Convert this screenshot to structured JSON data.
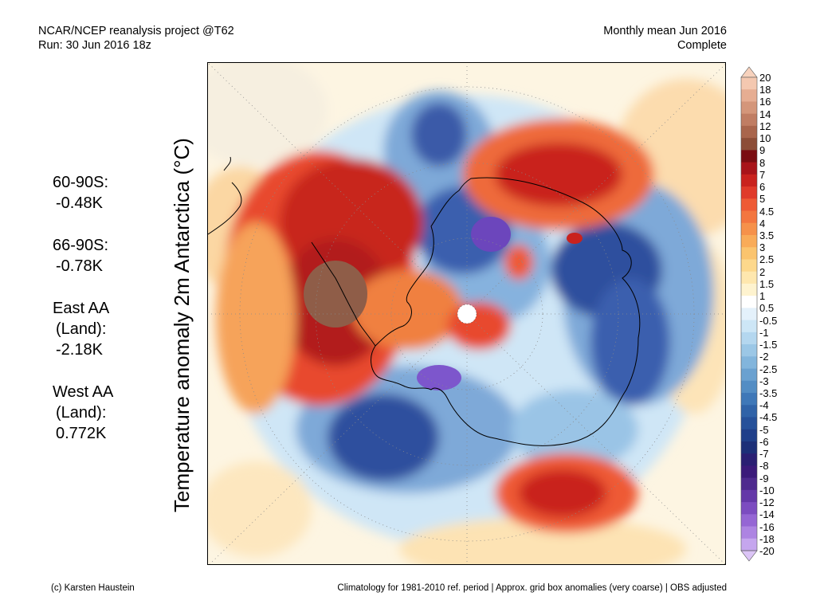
{
  "header": {
    "title_line1": "NCAR/NCEP reanalysis project @T62",
    "title_line2": "Run: 30 Jun 2016 18z",
    "right_line1": "Monthly mean Jun 2016",
    "right_line2": "Complete"
  },
  "y_axis_label": "Temperature anomaly 2m Antarctica (°C)",
  "stats": [
    {
      "name": "60-90S:",
      "value": "-0.48K"
    },
    {
      "name": "66-90S:",
      "value": "-0.78K"
    },
    {
      "name": "East AA",
      "sub": "(Land):",
      "value": "-2.18K"
    },
    {
      "name": "West AA",
      "sub": "(Land):",
      "value": "0.772K"
    }
  ],
  "colorbar": {
    "ticks": [
      "20",
      "18",
      "16",
      "14",
      "12",
      "10",
      "9",
      "8",
      "7",
      "6",
      "5",
      "4.5",
      "4",
      "3.5",
      "3",
      "2.5",
      "2",
      "1.5",
      "1",
      "0.5",
      "-0.5",
      "-1",
      "-1.5",
      "-2",
      "-2.5",
      "-3",
      "-3.5",
      "-4",
      "-4.5",
      "-5",
      "-6",
      "-7",
      "-8",
      "-9",
      "-10",
      "-12",
      "-14",
      "-16",
      "-18",
      "-20"
    ],
    "colors": [
      "#f4c8b0",
      "#e6ad92",
      "#d4967a",
      "#c07d63",
      "#a9654c",
      "#8c4d37",
      "#7a0d12",
      "#a8141a",
      "#c9221e",
      "#e03a2a",
      "#ee5a35",
      "#f3763f",
      "#f6914a",
      "#f9ab58",
      "#fbc46e",
      "#fdd88c",
      "#fee7ae",
      "#fef3cf",
      "#ffffff",
      "#e4f1fb",
      "#cde6f6",
      "#b4d7ef",
      "#9bc7e6",
      "#82b5dc",
      "#6aa1d0",
      "#538dc4",
      "#3f78b8",
      "#3063a8",
      "#26519a",
      "#1f3f8a",
      "#1c2f78",
      "#2a1f73",
      "#3b1a7a",
      "#4e2a8e",
      "#6438a8",
      "#7c4cc0",
      "#9566d4",
      "#ad84e2",
      "#c5a6ee"
    ],
    "top_cap": "#f7d2bd",
    "bottom_cap": "#dbc4f6"
  },
  "footer": {
    "left": "(c) Karsten Haustein",
    "right": "Climatology for 1981-2010 ref. period | Approx. grid box anomalies (very coarse) | OBS adjusted"
  }
}
